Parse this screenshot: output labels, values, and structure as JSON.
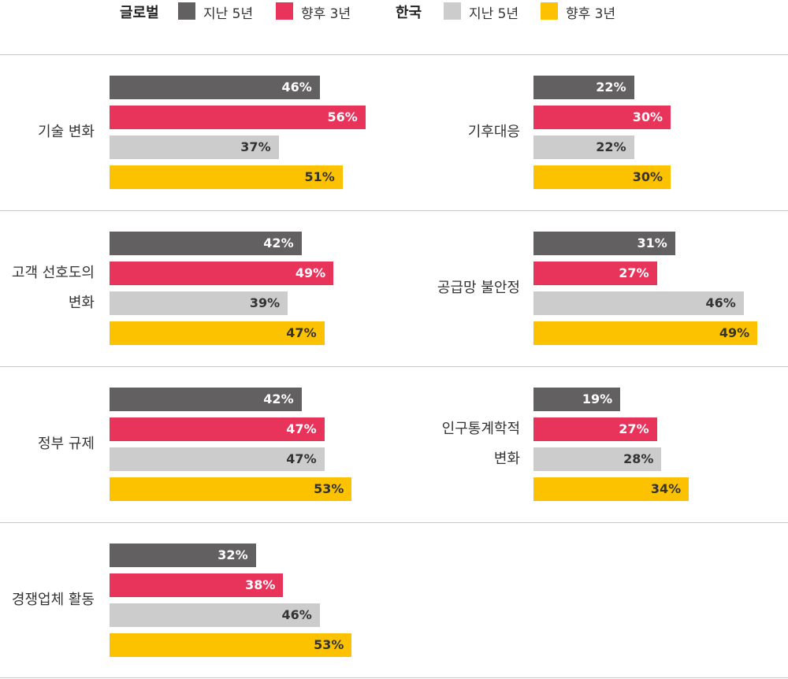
{
  "colors": {
    "global_past": "#636062",
    "global_future": "#e8335a",
    "korea_past": "#cccccc",
    "korea_future": "#fcc200",
    "label_on_dark": "#ffffff",
    "label_on_light": "#333333",
    "divider": "#c8c8c8"
  },
  "legend": {
    "groups": [
      {
        "title": "글로벌",
        "items": [
          {
            "label": "지난 5년",
            "color_key": "global_past"
          },
          {
            "label": "향후 3년",
            "color_key": "global_future"
          }
        ]
      },
      {
        "title": "한국",
        "items": [
          {
            "label": "지난 5년",
            "color_key": "korea_past"
          },
          {
            "label": "향후 3년",
            "color_key": "korea_future"
          }
        ]
      }
    ]
  },
  "chart_data": {
    "type": "bar",
    "orientation": "horizontal",
    "unit": "%",
    "xlim": [
      0,
      100
    ],
    "legend_position": "top",
    "grid": false,
    "series": [
      {
        "name": "글로벌 지난 5년",
        "color_key": "global_past"
      },
      {
        "name": "글로벌 향후 3년",
        "color_key": "global_future"
      },
      {
        "name": "한국 지난 5년",
        "color_key": "korea_past"
      },
      {
        "name": "한국 향후 3년",
        "color_key": "korea_future"
      }
    ],
    "panels": [
      {
        "category_lines": [
          "기술 변화"
        ],
        "values": [
          46,
          56,
          37,
          51
        ]
      },
      {
        "category_lines": [
          "기후대응"
        ],
        "values": [
          22,
          30,
          22,
          30
        ]
      },
      {
        "category_lines": [
          "고객 선호도의",
          "변화"
        ],
        "values": [
          42,
          49,
          39,
          47
        ]
      },
      {
        "category_lines": [
          "공급망 불안정"
        ],
        "values": [
          31,
          27,
          46,
          49
        ]
      },
      {
        "category_lines": [
          "정부 규제"
        ],
        "values": [
          42,
          47,
          47,
          53
        ]
      },
      {
        "category_lines": [
          "인구통계학적",
          "변화"
        ],
        "values": [
          19,
          27,
          28,
          34
        ]
      },
      {
        "category_lines": [
          "경쟁업체 활동"
        ],
        "values": [
          32,
          38,
          46,
          53
        ]
      }
    ]
  }
}
